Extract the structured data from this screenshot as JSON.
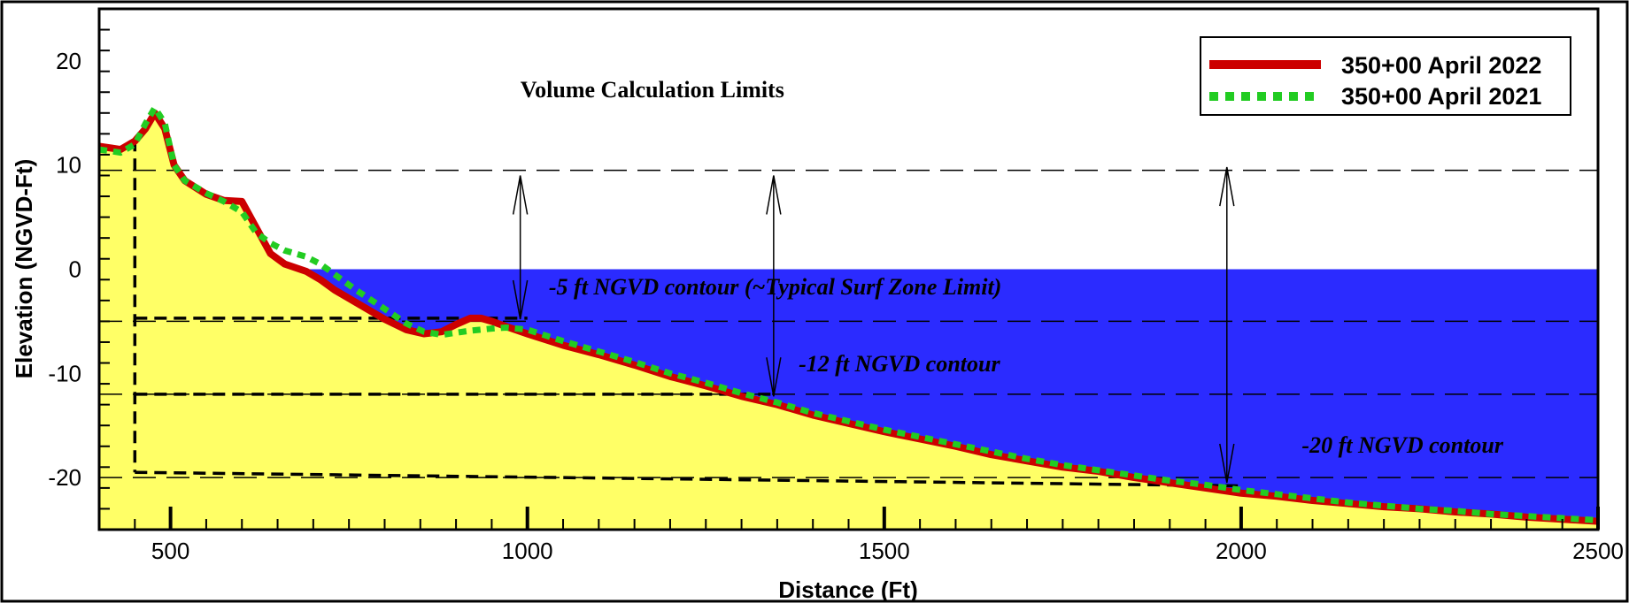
{
  "chart_data": {
    "type": "line",
    "title": "",
    "xlabel": "Distance (Ft)",
    "ylabel": "Elevation (NGVD-Ft)",
    "xlim": [
      400,
      2500
    ],
    "ylim": [
      -25,
      25
    ],
    "x_ticks": [
      500,
      1000,
      1500,
      2000,
      2500
    ],
    "y_ticks": [
      -20,
      -10,
      0,
      10,
      20
    ],
    "legend_position": "top-right",
    "colors": {
      "sand": "#ffff66",
      "water": "#2b2bff",
      "series_2022": "#cc0000",
      "series_2021": "#22cc22",
      "frame": "#000000"
    },
    "series": [
      {
        "name": "350+00 April 2022",
        "style": "solid",
        "x": [
          400,
          430,
          450,
          465,
          478,
          492,
          505,
          520,
          550,
          575,
          600,
          620,
          640,
          660,
          690,
          710,
          730,
          760,
          800,
          830,
          855,
          880,
          900,
          920,
          935,
          950,
          970,
          1000,
          1050,
          1100,
          1150,
          1200,
          1250,
          1300,
          1350,
          1400,
          1450,
          1500,
          1550,
          1600,
          1650,
          1700,
          1750,
          1800,
          1850,
          1900,
          1950,
          2000,
          2050,
          2100,
          2150,
          2200,
          2250,
          2300,
          2350,
          2400,
          2450,
          2500
        ],
        "y": [
          11.8,
          11.5,
          12.3,
          13.5,
          15.0,
          13.5,
          10.0,
          8.5,
          7.2,
          6.6,
          6.5,
          4.0,
          1.5,
          0.5,
          -0.2,
          -1.0,
          -2.0,
          -3.2,
          -4.8,
          -5.8,
          -6.2,
          -6.0,
          -5.3,
          -4.7,
          -4.7,
          -5.0,
          -5.5,
          -6.2,
          -7.3,
          -8.2,
          -9.2,
          -10.3,
          -11.2,
          -12.2,
          -13.0,
          -14.0,
          -14.8,
          -15.6,
          -16.3,
          -17.0,
          -17.8,
          -18.4,
          -19.0,
          -19.4,
          -20.0,
          -20.5,
          -21.0,
          -21.5,
          -21.8,
          -22.2,
          -22.5,
          -22.8,
          -23.0,
          -23.3,
          -23.5,
          -23.8,
          -24.0,
          -24.2
        ]
      },
      {
        "name": "350+00 April 2021",
        "style": "dotted",
        "x": [
          400,
          430,
          450,
          465,
          478,
          492,
          505,
          520,
          550,
          575,
          600,
          620,
          640,
          660,
          690,
          710,
          730,
          760,
          800,
          830,
          855,
          880,
          900,
          920,
          935,
          950,
          970,
          1000,
          1050,
          1100,
          1150,
          1200,
          1250,
          1300,
          1350,
          1400,
          1450,
          1500,
          1550,
          1600,
          1650,
          1700,
          1750,
          1800,
          1850,
          1900,
          1950,
          2000,
          2050,
          2100,
          2150,
          2200,
          2250,
          2300,
          2350,
          2400,
          2450,
          2500
        ],
        "y": [
          11.5,
          11.2,
          12.0,
          14.0,
          15.5,
          14.0,
          10.0,
          8.5,
          7.3,
          6.5,
          5.5,
          3.5,
          2.5,
          1.8,
          1.2,
          0.5,
          -0.5,
          -2.0,
          -3.8,
          -5.2,
          -6.0,
          -6.3,
          -6.1,
          -5.9,
          -5.8,
          -5.7,
          -5.6,
          -5.8,
          -6.9,
          -7.9,
          -8.9,
          -10.0,
          -10.9,
          -11.9,
          -12.8,
          -13.8,
          -14.6,
          -15.4,
          -16.1,
          -16.8,
          -17.5,
          -18.2,
          -18.8,
          -19.3,
          -19.8,
          -20.3,
          -20.7,
          -21.2,
          -21.6,
          -22.0,
          -22.4,
          -22.7,
          -23.0,
          -23.2,
          -23.5,
          -23.7,
          -23.9,
          -24.1
        ]
      }
    ],
    "reference_lines": [
      {
        "y": 9.5
      },
      {
        "y": -5
      },
      {
        "y": -12
      },
      {
        "y": -20
      }
    ],
    "volume_limits": {
      "vertical_x": 450,
      "top": 12.5,
      "lines": [
        {
          "y_start": -4.7,
          "y_end": -4.7,
          "x_end": 1000
        },
        {
          "y_start": -12.0,
          "y_end": -12.0,
          "x_end": 1350
        },
        {
          "y_start": -19.5,
          "y_end": -20.8,
          "x_end": 2000
        }
      ]
    },
    "arrows": [
      {
        "x": 990,
        "y_top": 9.0,
        "y_bottom": -4.8
      },
      {
        "x": 1345,
        "y_top": 9.0,
        "y_bottom": -12.2
      },
      {
        "x": 1980,
        "y_top": 9.8,
        "y_bottom": -20.5
      }
    ],
    "annotations": [
      {
        "text": "Volume Calculation Limits",
        "x": 1175,
        "y": 16.5
      },
      {
        "text": "-5 ft NGVD contour (~Typical Surf Zone Limit)",
        "x": 1030,
        "y": -2.4
      },
      {
        "text": "-12 ft NGVD contour",
        "x": 1380,
        "y": -9.8
      },
      {
        "text": "-20 ft NGVD contour",
        "x": 2085,
        "y": -17.6
      }
    ]
  }
}
